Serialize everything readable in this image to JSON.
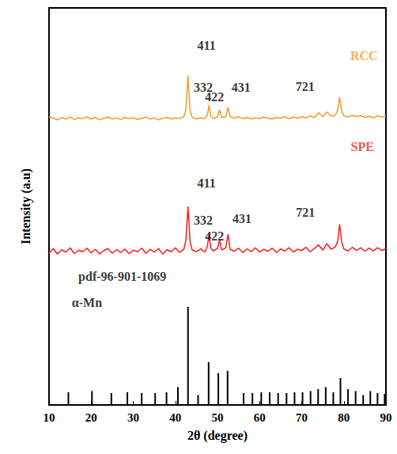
{
  "chart_data": {
    "type": "line",
    "x_label": "2θ (degree)",
    "y_label": "Intensity (a.u)",
    "xlim": [
      10,
      90
    ],
    "xticks": [
      10,
      20,
      30,
      40,
      50,
      60,
      70,
      80,
      90
    ],
    "ylim": [
      0,
      100
    ],
    "tick_labels": "x",
    "grid": false,
    "series": [
      {
        "name": "RCC",
        "type": "line",
        "color": "#f39a2e",
        "x": [
          10,
          11,
          12,
          13,
          14,
          15,
          16,
          17,
          18,
          19,
          20,
          21,
          22,
          23,
          24,
          25,
          26,
          27,
          28,
          29,
          30,
          31,
          32,
          33,
          34,
          35,
          36,
          37,
          38,
          39,
          40,
          41,
          42,
          42.5,
          43,
          43.5,
          44,
          45,
          46,
          47,
          47.6,
          48,
          48.4,
          49,
          50,
          50.5,
          51,
          52,
          52.5,
          53,
          54,
          55,
          56,
          57,
          58,
          59,
          60,
          61,
          62,
          63,
          64,
          65,
          66,
          67,
          68,
          69,
          70,
          71,
          72,
          73,
          74,
          75,
          76,
          77,
          78,
          78.6,
          79,
          79.5,
          80,
          81,
          82,
          83,
          84,
          85,
          86,
          87,
          88,
          89,
          90
        ],
        "values": [
          72.6,
          72.2,
          71.8,
          72.4,
          72.0,
          72.5,
          71.9,
          72.3,
          72.1,
          72.6,
          72.0,
          72.4,
          71.8,
          72.2,
          72.5,
          72.0,
          72.3,
          71.9,
          72.4,
          72.1,
          72.3,
          71.9,
          72.2,
          72.5,
          72.0,
          72.3,
          71.8,
          72.2,
          72.4,
          72.0,
          72.3,
          72.1,
          72.6,
          74.5,
          83.0,
          74.0,
          72.4,
          72.0,
          72.3,
          72.1,
          73.0,
          75.5,
          72.8,
          72.2,
          72.5,
          74.3,
          72.4,
          72.6,
          75.0,
          72.5,
          72.2,
          72.6,
          72.1,
          72.4,
          72.0,
          72.3,
          72.1,
          72.5,
          72.2,
          72.0,
          72.4,
          72.2,
          72.6,
          72.1,
          72.5,
          72.2,
          72.6,
          72.3,
          72.8,
          72.4,
          73.6,
          72.6,
          73.8,
          72.7,
          73.0,
          74.5,
          77.5,
          74.0,
          72.8,
          72.5,
          73.0,
          72.6,
          72.9,
          72.4,
          72.7,
          72.3,
          72.8,
          72.5,
          72.7
        ]
      },
      {
        "name": "SPE",
        "type": "line",
        "color": "#ff1a1a",
        "x": [
          10,
          11,
          12,
          13,
          14,
          15,
          16,
          17,
          18,
          19,
          20,
          21,
          22,
          23,
          24,
          25,
          26,
          27,
          28,
          29,
          30,
          31,
          32,
          33,
          34,
          35,
          36,
          37,
          38,
          39,
          40,
          41,
          42,
          42.5,
          43,
          43.5,
          44,
          45,
          46,
          47,
          47.6,
          48,
          48.4,
          49,
          50,
          50.5,
          51,
          52,
          52.5,
          53,
          54,
          55,
          56,
          57,
          58,
          59,
          60,
          61,
          62,
          63,
          64,
          65,
          66,
          67,
          68,
          69,
          70,
          71,
          72,
          73,
          74,
          75,
          76,
          77,
          78,
          78.6,
          79,
          79.5,
          80,
          81,
          82,
          83,
          84,
          85,
          86,
          87,
          88,
          89,
          90
        ],
        "values": [
          38.2,
          39.4,
          38.0,
          39.1,
          38.5,
          39.6,
          38.1,
          39.0,
          38.6,
          39.5,
          38.3,
          39.2,
          38.0,
          38.9,
          39.4,
          38.2,
          39.1,
          38.4,
          39.3,
          38.1,
          39.0,
          38.6,
          39.5,
          38.2,
          39.2,
          38.5,
          39.4,
          38.0,
          39.1,
          38.6,
          39.6,
          38.4,
          39.2,
          41.5,
          50.0,
          41.0,
          39.0,
          38.6,
          39.3,
          38.5,
          40.0,
          43.0,
          39.6,
          38.8,
          39.4,
          41.5,
          39.0,
          39.6,
          43.0,
          39.2,
          38.7,
          39.5,
          38.4,
          39.3,
          38.6,
          39.6,
          38.5,
          39.2,
          38.7,
          39.5,
          38.4,
          39.3,
          38.8,
          39.6,
          38.5,
          39.2,
          38.9,
          39.7,
          38.6,
          39.4,
          40.3,
          39.0,
          40.6,
          39.2,
          39.8,
          41.5,
          45.5,
          41.0,
          39.3,
          38.8,
          39.7,
          38.9,
          39.6,
          38.7,
          39.5,
          38.8,
          39.6,
          38.9,
          39.4
        ]
      },
      {
        "name": "α-Mn",
        "type": "stick",
        "color": "#000000",
        "x": [
          14.6,
          20.2,
          24.8,
          28.6,
          32.0,
          35.2,
          37.9,
          40.6,
          43.0,
          45.4,
          47.9,
          50.2,
          52.4,
          56.2,
          58.3,
          60.4,
          62.4,
          64.4,
          66.4,
          68.3,
          70.2,
          72.1,
          73.9,
          75.7,
          77.5,
          79.2,
          81.0,
          82.8,
          84.6,
          86.3,
          88.0,
          89.7
        ],
        "values": [
          3.2,
          3.5,
          3.0,
          3.2,
          3.0,
          3.0,
          3.2,
          4.5,
          24.7,
          2.5,
          10.8,
          8.0,
          8.6,
          3.0,
          3.0,
          3.2,
          3.2,
          3.0,
          3.0,
          3.2,
          3.2,
          3.5,
          4.0,
          4.5,
          3.2,
          6.8,
          4.0,
          3.5,
          2.5,
          3.5,
          3.0,
          2.8
        ]
      }
    ],
    "annotations": [
      {
        "text": "RCC",
        "x": 84.8,
        "y": 88.0,
        "color": "#f39a2e"
      },
      {
        "text": "411",
        "x": 47.4,
        "y": 90.6,
        "color": "#000000"
      },
      {
        "text": "332",
        "x": 46.6,
        "y": 80.0,
        "color": "#000000"
      },
      {
        "text": "422",
        "x": 49.3,
        "y": 77.6,
        "color": "#000000"
      },
      {
        "text": "431",
        "x": 55.6,
        "y": 80.0,
        "color": "#000000"
      },
      {
        "text": "721",
        "x": 70.8,
        "y": 80.2,
        "color": "#000000"
      },
      {
        "text": "SPE",
        "x": 84.4,
        "y": 65.0,
        "color": "#ff1a1a"
      },
      {
        "text": "411",
        "x": 47.4,
        "y": 55.8,
        "color": "#000000"
      },
      {
        "text": "332",
        "x": 46.6,
        "y": 46.6,
        "color": "#000000"
      },
      {
        "text": "422",
        "x": 49.3,
        "y": 42.6,
        "color": "#000000"
      },
      {
        "text": "431",
        "x": 55.8,
        "y": 47.0,
        "color": "#000000"
      },
      {
        "text": "721",
        "x": 70.9,
        "y": 48.6,
        "color": "#000000"
      },
      {
        "text": "pdf-96-901-1069",
        "x": 27.4,
        "y": 32.3,
        "color": "#000000"
      },
      {
        "text": "α-Mn",
        "x": 19.0,
        "y": 25.7,
        "color": "#000000"
      }
    ]
  }
}
